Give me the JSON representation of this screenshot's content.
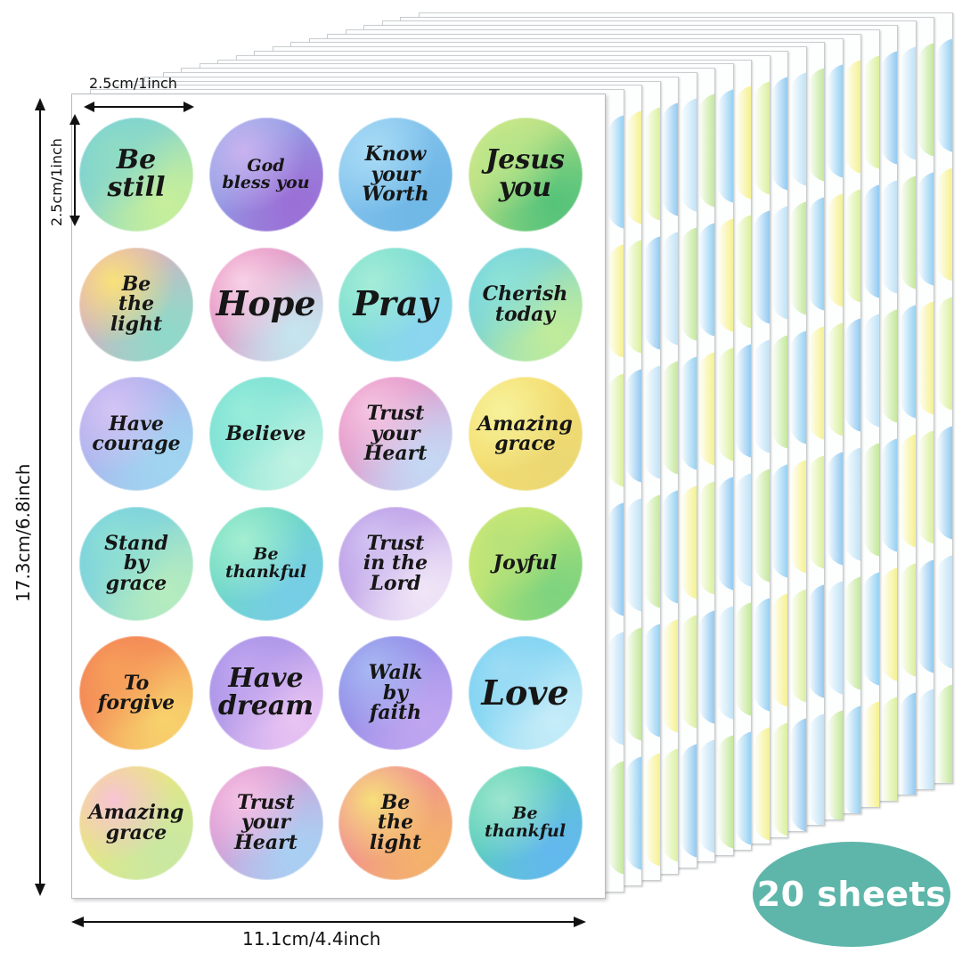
{
  "dimensions": {
    "sticker_width": "2.5cm/1inch",
    "sticker_height": "2.5cm/1inch",
    "sheet_height": "17.3cm/6.8inch",
    "sheet_width": "11.1cm/4.4inch"
  },
  "badge": {
    "label": "20 sheets",
    "color": "#5eb6aa"
  },
  "stickers": [
    {
      "text": "Be\nstill",
      "colors": [
        "#63c6e8",
        "#8fdcc4",
        "#c7ef9a"
      ]
    },
    {
      "text": "God\nbless you",
      "colors": [
        "#8fb7ec",
        "#c9b2ef",
        "#9b6fd6"
      ]
    },
    {
      "text": "Know\nyour\nWorth",
      "colors": [
        "#8cc8ef",
        "#a9dcf6",
        "#6fb7e6"
      ]
    },
    {
      "text": "Jesus\nyou",
      "colors": [
        "#f1f08a",
        "#b7e58a",
        "#55c37a"
      ]
    },
    {
      "text": "Be\nthe\nlight",
      "colors": [
        "#f4a1bf",
        "#f8e27a",
        "#8fd9c9"
      ]
    },
    {
      "text": "Hope",
      "colors": [
        "#f06fb0",
        "#f7d2e6",
        "#c4e6ef"
      ]
    },
    {
      "text": "Pray",
      "colors": [
        "#74e0c4",
        "#a4ecd8",
        "#8cd6f0"
      ]
    },
    {
      "text": "Cherish\ntoday",
      "colors": [
        "#5cc9f0",
        "#8ee2d6",
        "#c0ec9a"
      ]
    },
    {
      "text": "Have\ncourage",
      "colors": [
        "#b3a3ec",
        "#d4c4f4",
        "#9fd5f0"
      ]
    },
    {
      "text": "Believe",
      "colors": [
        "#5fd8d0",
        "#98ecd9",
        "#bff2e2"
      ]
    },
    {
      "text": "Trust\nyour\nHeart",
      "colors": [
        "#f07ab6",
        "#f4c6e2",
        "#c4d9f5"
      ]
    },
    {
      "text": "Amazing\ngrace",
      "colors": [
        "#f8e06e",
        "#f6f29c",
        "#ecd873"
      ]
    },
    {
      "text": "Stand\nby\ngrace",
      "colors": [
        "#62c6ec",
        "#8fdfd4",
        "#b6ecbe"
      ]
    },
    {
      "text": "Be\nthankful",
      "colors": [
        "#6adcb6",
        "#a4eed2",
        "#76cde6"
      ]
    },
    {
      "text": "Trust\nin the\nLord",
      "colors": [
        "#a67fe0",
        "#d3c3f2",
        "#f0e6f7"
      ]
    },
    {
      "text": "Joyful",
      "colors": [
        "#e8f070",
        "#b8e27a",
        "#7dd37e"
      ]
    },
    {
      "text": "To\nforgive",
      "colors": [
        "#f2644e",
        "#f6a05a",
        "#f7d26c"
      ]
    },
    {
      "text": "Have\ndream",
      "colors": [
        "#8e7fe2",
        "#c2a7f0",
        "#e8c3f3"
      ]
    },
    {
      "text": "Walk\nby\nfaith",
      "colors": [
        "#7f7fe3",
        "#a9b9f3",
        "#c0a6f0"
      ]
    },
    {
      "text": "Love",
      "colors": [
        "#5cc8ef",
        "#9ddcf5",
        "#c6ecf8"
      ]
    },
    {
      "text": "Amazing\ngrace",
      "colors": [
        "#f6e66e",
        "#f7c3d4",
        "#c9e8a2"
      ]
    },
    {
      "text": "Trust\nyour\nHeart",
      "colors": [
        "#e983c7",
        "#f4c3e5",
        "#a8d0f3"
      ]
    },
    {
      "text": "Be\nthe\nlight",
      "colors": [
        "#f07fa6",
        "#f6df7a",
        "#f3b26b"
      ]
    },
    {
      "text": "Be\nthankful",
      "colors": [
        "#55d7a4",
        "#9de5cf",
        "#63b8ee"
      ]
    }
  ],
  "peek_colors": [
    "#a6dc68",
    "#5fb9ec",
    "#f0ea56",
    "#c8e86a",
    "#5aaeea",
    "#9fd3f2"
  ]
}
